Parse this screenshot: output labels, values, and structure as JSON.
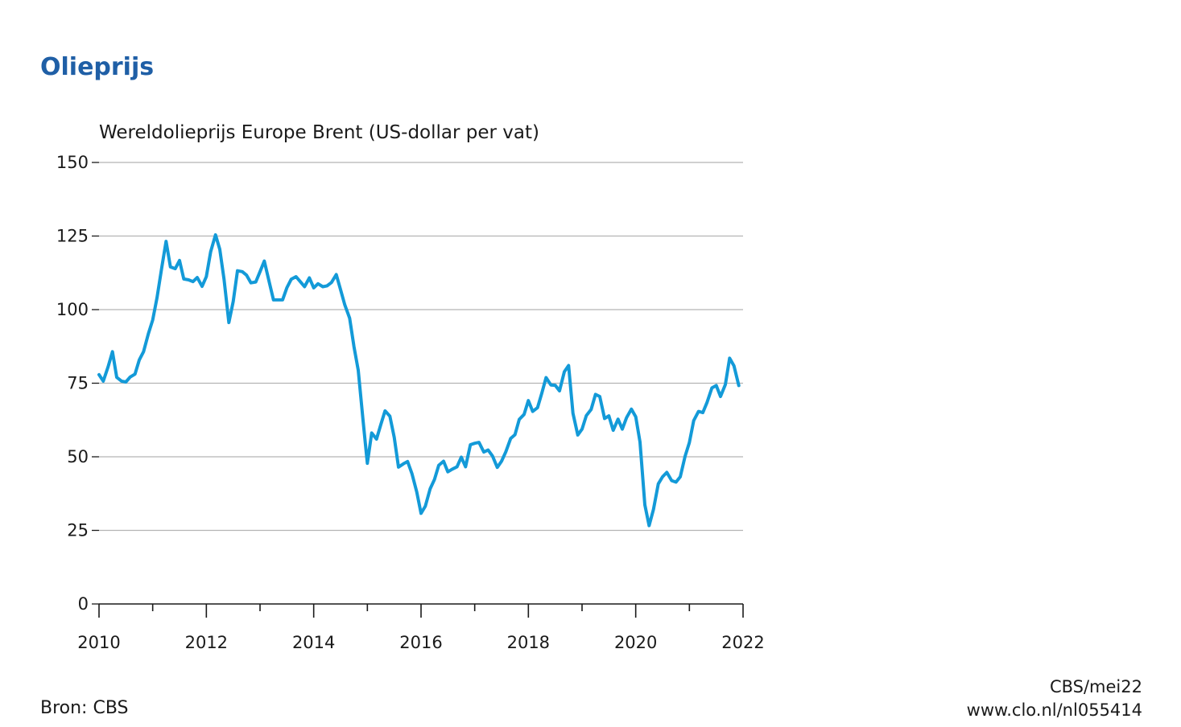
{
  "header": {
    "title": "Olieprijs"
  },
  "footer": {
    "source": "Bron: CBS",
    "credit_date": "CBS/mei22",
    "credit_url": "www.clo.nl/nl055414"
  },
  "colors": {
    "title": "#1f5fa6",
    "line": "#139ad8",
    "grid": "#b4b4b4",
    "axis": "#1a1a1a"
  },
  "chart_data": {
    "type": "line",
    "title": "",
    "subtitle": "Wereldolieprijs Europe Brent (US-dollar per vat)",
    "xlabel": "",
    "ylabel": "",
    "xlim": [
      2010,
      2022
    ],
    "ylim": [
      0,
      150
    ],
    "x_ticks": [
      "2010",
      "2012",
      "2014",
      "2016",
      "2018",
      "2020",
      "2022"
    ],
    "y_ticks": [
      "0",
      "25",
      "50",
      "75",
      "100",
      "125",
      "150"
    ],
    "grid": "horizontal",
    "legend": "none",
    "series": [
      {
        "x": [
          2010.0,
          2010.08,
          2010.17,
          2010.25,
          2010.33,
          2010.42,
          2010.5,
          2010.58,
          2010.67,
          2010.75,
          2010.83,
          2010.92,
          2011.0,
          2011.08,
          2011.17,
          2011.25,
          2011.33,
          2011.42,
          2011.5,
          2011.58,
          2011.67,
          2011.75,
          2011.83,
          2011.92,
          2012.0,
          2012.08,
          2012.17,
          2012.25,
          2012.33,
          2012.42,
          2012.5,
          2012.58,
          2012.67,
          2012.75,
          2012.83,
          2012.92,
          2013.0,
          2013.08,
          2013.17,
          2013.25,
          2013.33,
          2013.42,
          2013.5,
          2013.58,
          2013.67,
          2013.75,
          2013.83,
          2013.92,
          2014.0,
          2014.08,
          2014.17,
          2014.25,
          2014.33,
          2014.42,
          2014.5,
          2014.58,
          2014.67,
          2014.75,
          2014.83,
          2014.92,
          2015.0,
          2015.08,
          2015.17,
          2015.25,
          2015.33,
          2015.42,
          2015.5,
          2015.58,
          2015.67,
          2015.75,
          2015.83,
          2015.92,
          2016.0,
          2016.08,
          2016.17,
          2016.25,
          2016.33,
          2016.42,
          2016.5,
          2016.58,
          2016.67,
          2016.75,
          2016.83,
          2016.92,
          2017.0,
          2017.08,
          2017.17,
          2017.25,
          2017.33,
          2017.42,
          2017.5,
          2017.58,
          2017.67,
          2017.75,
          2017.83,
          2017.92,
          2018.0,
          2018.08,
          2018.17,
          2018.25,
          2018.33,
          2018.42,
          2018.5,
          2018.58,
          2018.67,
          2018.75,
          2018.83,
          2018.92,
          2019.0,
          2019.08,
          2019.17,
          2019.25,
          2019.33,
          2019.42,
          2019.5,
          2019.58,
          2019.67,
          2019.75,
          2019.83,
          2019.92,
          2020.0,
          2020.08,
          2020.17,
          2020.25,
          2020.33,
          2020.42,
          2020.5,
          2020.58,
          2020.67,
          2020.75,
          2020.83,
          2020.92,
          2021.0,
          2021.08,
          2021.17,
          2021.25,
          2021.33,
          2021.42,
          2021.5,
          2021.58,
          2021.67,
          2021.75,
          2021.83,
          2021.92
        ],
        "y": [
          77.9,
          75.7,
          80.6,
          85.7,
          77.0,
          75.7,
          75.4,
          77.1,
          78.1,
          82.9,
          85.7,
          91.8,
          96.5,
          104.0,
          114.4,
          123.2,
          114.5,
          113.9,
          116.7,
          110.4,
          110.1,
          109.5,
          110.9,
          107.9,
          111.2,
          119.7,
          125.4,
          120.5,
          110.3,
          95.6,
          102.8,
          113.2,
          112.9,
          111.7,
          109.1,
          109.4,
          112.9,
          116.5,
          109.5,
          103.3,
          103.3,
          103.3,
          107.4,
          110.3,
          111.2,
          109.5,
          107.8,
          110.8,
          107.4,
          108.8,
          107.8,
          108.1,
          109.2,
          111.9,
          106.8,
          101.6,
          97.1,
          87.4,
          79.4,
          62.3,
          47.8,
          58.1,
          56.0,
          60.9,
          65.6,
          63.8,
          56.6,
          46.5,
          47.6,
          48.4,
          44.3,
          38.0,
          30.8,
          33.2,
          39.1,
          42.3,
          47.1,
          48.5,
          44.9,
          45.8,
          46.6,
          49.9,
          46.6,
          54.1,
          54.6,
          54.9,
          51.6,
          52.3,
          50.3,
          46.4,
          48.5,
          51.7,
          56.2,
          57.5,
          62.7,
          64.4,
          69.1,
          65.4,
          66.7,
          71.6,
          76.9,
          74.4,
          74.3,
          72.4,
          78.9,
          81.0,
          64.8,
          57.4,
          59.4,
          64.0,
          66.1,
          71.2,
          70.5,
          63.0,
          63.9,
          59.0,
          62.8,
          59.4,
          63.3,
          66.2,
          63.6,
          55.0,
          33.7,
          26.6,
          32.1,
          40.8,
          43.2,
          44.7,
          41.9,
          41.4,
          43.2,
          50.2,
          54.8,
          62.3,
          65.4,
          65.0,
          68.5,
          73.4,
          74.2,
          70.5,
          74.5,
          83.5,
          80.9,
          74.2
        ]
      }
    ]
  }
}
